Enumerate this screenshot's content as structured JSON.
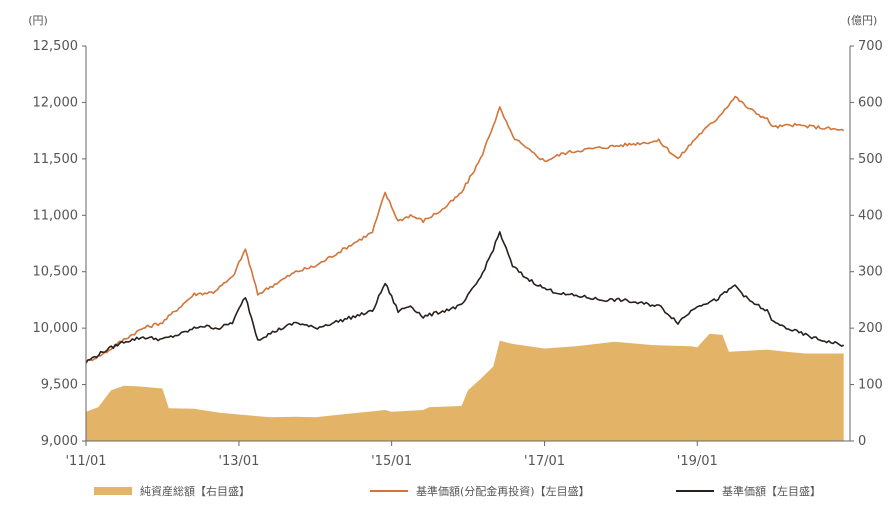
{
  "chart_data": {
    "type": "line",
    "title": "",
    "left_axis": {
      "unit": "(円)",
      "ylim": [
        9000,
        12500
      ],
      "ticks": [
        "9,000",
        "9,500",
        "10,000",
        "10,500",
        "11,000",
        "11,500",
        "12,000",
        "12,500"
      ],
      "tick_values": [
        9000,
        9500,
        10000,
        10500,
        11000,
        11500,
        12000,
        12500
      ]
    },
    "right_axis": {
      "unit": "(億円)",
      "ylim": [
        0,
        700
      ],
      "ticks": [
        "0",
        "100",
        "200",
        "300",
        "400",
        "500",
        "600",
        "700"
      ],
      "tick_values": [
        0,
        100,
        200,
        300,
        400,
        500,
        600,
        700
      ]
    },
    "x_axis": {
      "range": [
        "2011-01",
        "2020-12"
      ],
      "ticks": [
        "'11/01",
        "'13/01",
        "'15/01",
        "'17/01",
        "'19/01"
      ],
      "tick_dates": [
        "2011-01",
        "2013-01",
        "2015-01",
        "2017-01",
        "2019-01"
      ]
    },
    "grid": false,
    "legend_position": "bottom",
    "series": [
      {
        "name": "純資産総額【右目盛】",
        "type": "area",
        "axis": "right",
        "color": "#e3b468",
        "points": [
          [
            "2011-01",
            52
          ],
          [
            "2011-03",
            60
          ],
          [
            "2011-05",
            90
          ],
          [
            "2011-07",
            98
          ],
          [
            "2011-09",
            97
          ],
          [
            "2012-01",
            93
          ],
          [
            "2012-02",
            58
          ],
          [
            "2012-06",
            57
          ],
          [
            "2012-10",
            50
          ],
          [
            "2013-01",
            47
          ],
          [
            "2013-06",
            42
          ],
          [
            "2013-10",
            43
          ],
          [
            "2014-01",
            42
          ],
          [
            "2014-06",
            48
          ],
          [
            "2014-12",
            55
          ],
          [
            "2015-01",
            52
          ],
          [
            "2015-06",
            55
          ],
          [
            "2015-07",
            60
          ],
          [
            "2015-12",
            62
          ],
          [
            "2016-01",
            90
          ],
          [
            "2016-03",
            110
          ],
          [
            "2016-05",
            132
          ],
          [
            "2016-06",
            178
          ],
          [
            "2016-08",
            172
          ],
          [
            "2017-01",
            164
          ],
          [
            "2017-06",
            168
          ],
          [
            "2017-12",
            176
          ],
          [
            "2018-06",
            170
          ],
          [
            "2018-12",
            168
          ],
          [
            "2019-01",
            166
          ],
          [
            "2019-03",
            190
          ],
          [
            "2019-05",
            188
          ],
          [
            "2019-06",
            158
          ],
          [
            "2019-12",
            162
          ],
          [
            "2020-03",
            158
          ],
          [
            "2020-06",
            155
          ],
          [
            "2020-12",
            155
          ]
        ]
      },
      {
        "name": "基準価額(分配金再投資)【左目盛】",
        "type": "line",
        "axis": "left",
        "color": "#d2753a",
        "points": [
          [
            "2011-01",
            9700
          ],
          [
            "2011-04",
            9780
          ],
          [
            "2011-07",
            9900
          ],
          [
            "2011-10",
            10000
          ],
          [
            "2012-01",
            10050
          ],
          [
            "2012-03",
            10150
          ],
          [
            "2012-06",
            10300
          ],
          [
            "2012-09",
            10320
          ],
          [
            "2012-12",
            10450
          ],
          [
            "2013-02",
            10700
          ],
          [
            "2013-04",
            10300
          ],
          [
            "2013-07",
            10400
          ],
          [
            "2013-10",
            10500
          ],
          [
            "2014-01",
            10550
          ],
          [
            "2014-04",
            10650
          ],
          [
            "2014-07",
            10750
          ],
          [
            "2014-10",
            10850
          ],
          [
            "2014-12",
            11200
          ],
          [
            "2015-02",
            10950
          ],
          [
            "2015-04",
            11000
          ],
          [
            "2015-06",
            10950
          ],
          [
            "2015-09",
            11050
          ],
          [
            "2015-12",
            11200
          ],
          [
            "2016-03",
            11500
          ],
          [
            "2016-05",
            11800
          ],
          [
            "2016-06",
            11950
          ],
          [
            "2016-08",
            11700
          ],
          [
            "2016-10",
            11600
          ],
          [
            "2017-01",
            11480
          ],
          [
            "2017-04",
            11550
          ],
          [
            "2017-07",
            11580
          ],
          [
            "2017-10",
            11600
          ],
          [
            "2018-01",
            11620
          ],
          [
            "2018-04",
            11640
          ],
          [
            "2018-07",
            11660
          ],
          [
            "2018-10",
            11500
          ],
          [
            "2019-01",
            11700
          ],
          [
            "2019-04",
            11850
          ],
          [
            "2019-07",
            12050
          ],
          [
            "2019-09",
            11950
          ],
          [
            "2019-12",
            11850
          ],
          [
            "2020-01",
            11780
          ],
          [
            "2020-04",
            11800
          ],
          [
            "2020-08",
            11780
          ],
          [
            "2020-12",
            11750
          ]
        ]
      },
      {
        "name": "基準価額【左目盛】",
        "type": "line",
        "axis": "left",
        "color": "#2a211e",
        "points": [
          [
            "2011-01",
            9700
          ],
          [
            "2011-04",
            9800
          ],
          [
            "2011-07",
            9880
          ],
          [
            "2011-10",
            9920
          ],
          [
            "2012-01",
            9900
          ],
          [
            "2012-04",
            9950
          ],
          [
            "2012-07",
            10020
          ],
          [
            "2012-10",
            10000
          ],
          [
            "2012-12",
            10050
          ],
          [
            "2013-02",
            10280
          ],
          [
            "2013-04",
            9900
          ],
          [
            "2013-07",
            9980
          ],
          [
            "2013-10",
            10050
          ],
          [
            "2014-01",
            10000
          ],
          [
            "2014-04",
            10050
          ],
          [
            "2014-07",
            10100
          ],
          [
            "2014-10",
            10150
          ],
          [
            "2014-12",
            10400
          ],
          [
            "2015-02",
            10150
          ],
          [
            "2015-04",
            10200
          ],
          [
            "2015-06",
            10100
          ],
          [
            "2015-09",
            10150
          ],
          [
            "2015-12",
            10200
          ],
          [
            "2016-03",
            10450
          ],
          [
            "2016-05",
            10700
          ],
          [
            "2016-06",
            10850
          ],
          [
            "2016-08",
            10550
          ],
          [
            "2016-10",
            10450
          ],
          [
            "2017-01",
            10350
          ],
          [
            "2017-04",
            10300
          ],
          [
            "2017-07",
            10280
          ],
          [
            "2017-10",
            10250
          ],
          [
            "2018-01",
            10250
          ],
          [
            "2018-04",
            10220
          ],
          [
            "2018-07",
            10200
          ],
          [
            "2018-10",
            10050
          ],
          [
            "2019-01",
            10200
          ],
          [
            "2019-04",
            10250
          ],
          [
            "2019-07",
            10380
          ],
          [
            "2019-09",
            10250
          ],
          [
            "2019-12",
            10150
          ],
          [
            "2020-01",
            10050
          ],
          [
            "2020-04",
            9980
          ],
          [
            "2020-08",
            9900
          ],
          [
            "2020-12",
            9850
          ]
        ]
      }
    ]
  },
  "legend": [
    {
      "label": "純資産総額【右目盛】",
      "color": "#e3b468",
      "kind": "area"
    },
    {
      "label": "基準価額(分配金再投資)【左目盛】",
      "color": "#d2753a",
      "kind": "line"
    },
    {
      "label": "基準価額【左目盛】",
      "color": "#2a211e",
      "kind": "line"
    }
  ]
}
